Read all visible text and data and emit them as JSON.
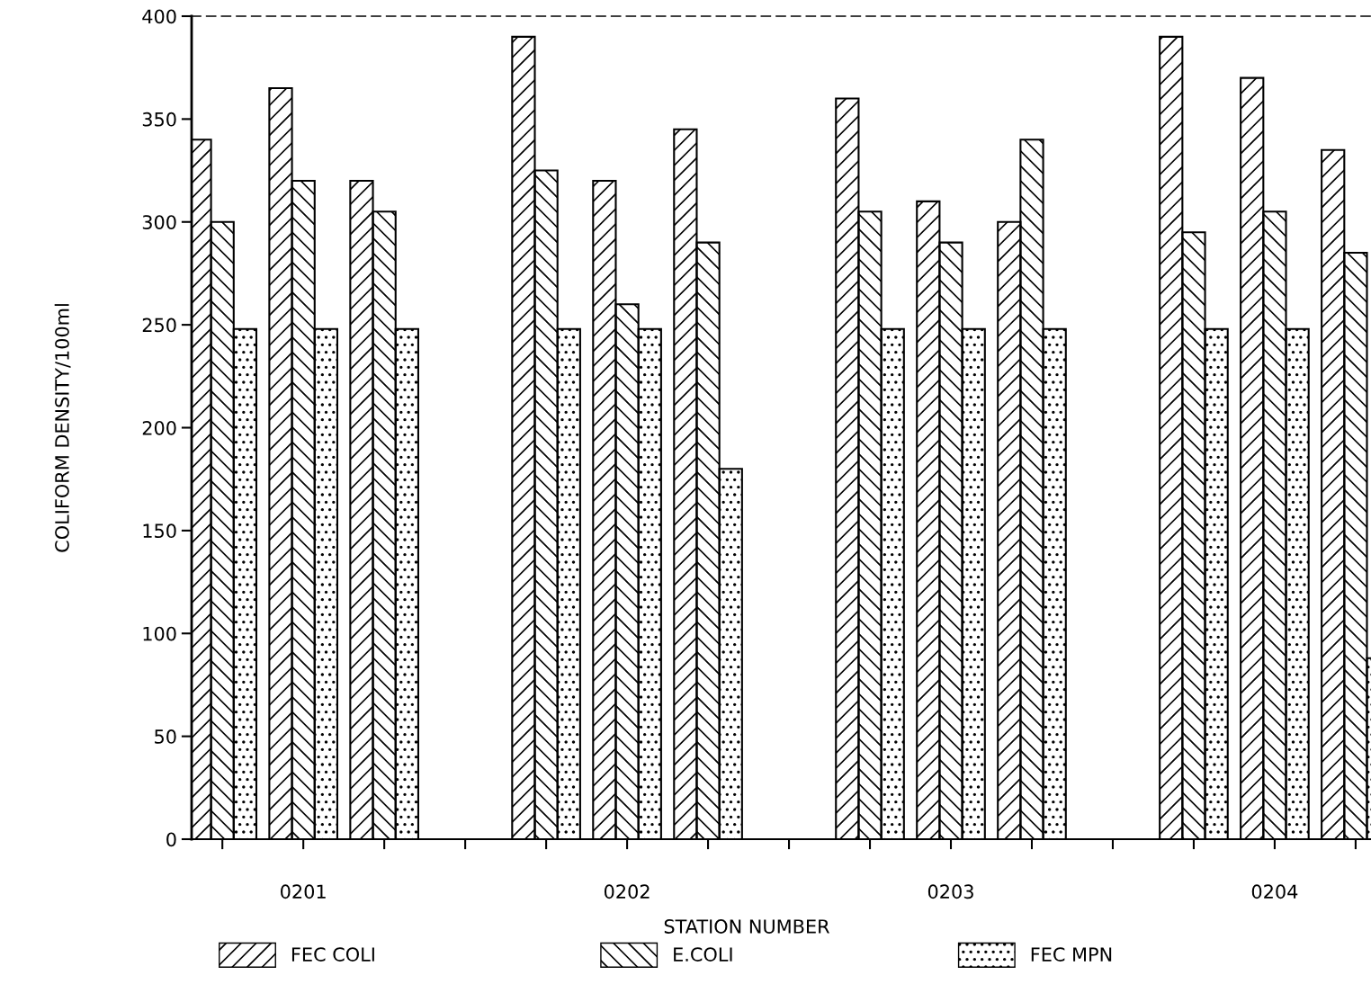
{
  "chart_data": {
    "type": "bar",
    "xlabel": "STATION NUMBER",
    "ylabel": "COLIFORM DENSITY/100ml",
    "categories": [
      null,
      "0201",
      null,
      null,
      null,
      "0202",
      null,
      null,
      null,
      "0203",
      null,
      null,
      null,
      "0204",
      null
    ],
    "series": [
      {
        "name": "FEC COLI",
        "color": "#000000",
        "values": [
          340,
          365,
          320,
          null,
          390,
          320,
          345,
          null,
          360,
          310,
          300,
          null,
          390,
          370,
          335
        ]
      },
      {
        "name": "E.COLI",
        "color": "#000000",
        "values": [
          300,
          320,
          305,
          null,
          325,
          260,
          290,
          null,
          305,
          290,
          340,
          null,
          295,
          305,
          285
        ]
      },
      {
        "name": "FEC MPN",
        "color": "#000000",
        "values": [
          248,
          248,
          248,
          null,
          248,
          248,
          180,
          null,
          248,
          248,
          248,
          null,
          248,
          248,
          88
        ]
      }
    ],
    "ylim": [
      0,
      400
    ],
    "yticks": [
      0,
      50,
      100,
      150,
      200,
      250,
      300,
      350,
      400
    ],
    "legend": "bottom",
    "grid": false
  }
}
